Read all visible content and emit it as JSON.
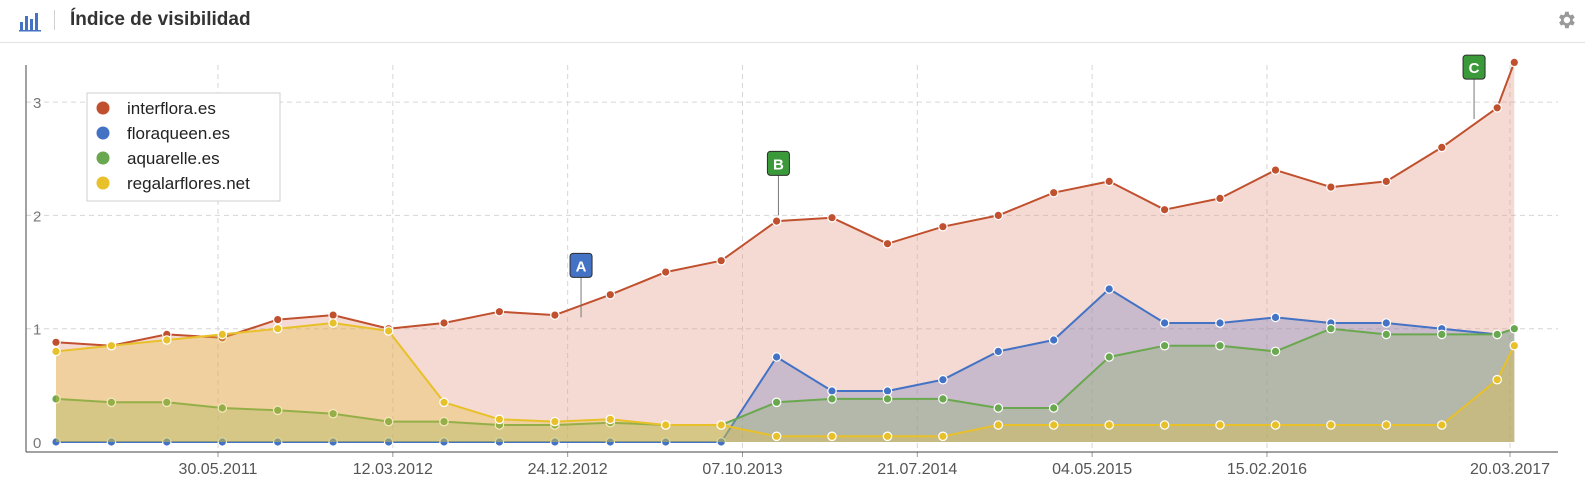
{
  "header": {
    "title": "Índice de visibilidad",
    "chart_icon": "bar-chart-icon",
    "settings_icon": "gear-icon"
  },
  "colors": {
    "interflora": "#c0502e",
    "floraqueen": "#4472c4",
    "aquarelle": "#6aa84f",
    "regalarflores": "#e8c02a",
    "grid": "#d6d6d6"
  },
  "chart_data": {
    "type": "area",
    "title": "Índice de visibilidad",
    "xlabel": "",
    "ylabel": "",
    "x_ticks": [
      "30.05.2011",
      "12.03.2012",
      "24.12.2012",
      "07.10.2013",
      "21.07.2014",
      "04.05.2015",
      "15.02.2016",
      "20.03.2017"
    ],
    "y_ticks": [
      "0",
      "1",
      "2",
      "3"
    ],
    "ylim": [
      0,
      3.5
    ],
    "grid": true,
    "legend": "top-left",
    "x_dates": [
      "2010-09-06",
      "2010-12-06",
      "2011-03-07",
      "2011-06-06",
      "2011-09-05",
      "2011-12-05",
      "2012-03-05",
      "2012-06-04",
      "2012-09-03",
      "2012-12-03",
      "2013-03-04",
      "2013-06-03",
      "2013-09-02",
      "2013-12-02",
      "2014-03-03",
      "2014-06-02",
      "2014-09-01",
      "2014-12-01",
      "2015-03-02",
      "2015-06-01",
      "2015-08-31",
      "2015-11-30",
      "2016-02-29",
      "2016-05-30",
      "2016-08-29",
      "2016-11-28",
      "2017-02-27",
      "2017-03-27"
    ],
    "series": [
      {
        "name": "interflora.es",
        "values": [
          0.88,
          0.85,
          0.95,
          0.92,
          1.08,
          1.12,
          1.0,
          1.05,
          1.15,
          1.12,
          1.3,
          1.5,
          1.6,
          1.95,
          1.98,
          1.75,
          1.9,
          2.0,
          2.2,
          2.3,
          2.05,
          2.15,
          2.4,
          2.25,
          2.3,
          2.6,
          2.95,
          3.35
        ]
      },
      {
        "name": "floraqueen.es",
        "values": [
          0.0,
          0.0,
          0.0,
          0.0,
          0.0,
          0.0,
          0.0,
          0.0,
          0.0,
          0.0,
          0.0,
          0.0,
          0.0,
          0.75,
          0.45,
          0.45,
          0.55,
          0.8,
          0.9,
          1.35,
          1.05,
          1.05,
          1.1,
          1.05,
          1.05,
          1.0,
          0.95,
          1.0
        ]
      },
      {
        "name": "aquarelle.es",
        "values": [
          0.38,
          0.35,
          0.35,
          0.3,
          0.28,
          0.25,
          0.18,
          0.18,
          0.15,
          0.15,
          0.17,
          0.15,
          0.15,
          0.35,
          0.38,
          0.38,
          0.38,
          0.3,
          0.3,
          0.75,
          0.85,
          0.85,
          0.8,
          1.0,
          0.95,
          0.95,
          0.95,
          1.0
        ]
      },
      {
        "name": "regalarflores.net",
        "values": [
          0.8,
          0.85,
          0.9,
          0.95,
          1.0,
          1.05,
          0.98,
          0.35,
          0.2,
          0.18,
          0.2,
          0.15,
          0.15,
          0.05,
          0.05,
          0.05,
          0.05,
          0.15,
          0.15,
          0.15,
          0.15,
          0.15,
          0.15,
          0.15,
          0.15,
          0.15,
          0.55,
          0.85
        ]
      }
    ],
    "annotations": [
      {
        "label": "A",
        "series": "interflora.es",
        "date": "2013-01-15",
        "y": 1.1,
        "color": "#4472c4"
      },
      {
        "label": "B",
        "series": "interflora.es",
        "date": "2013-12-05",
        "y": 2.0,
        "color": "#3a9a3a"
      },
      {
        "label": "C",
        "series": "interflora.es",
        "date": "2017-01-20",
        "y": 2.85,
        "color": "#3a9a3a"
      }
    ]
  }
}
